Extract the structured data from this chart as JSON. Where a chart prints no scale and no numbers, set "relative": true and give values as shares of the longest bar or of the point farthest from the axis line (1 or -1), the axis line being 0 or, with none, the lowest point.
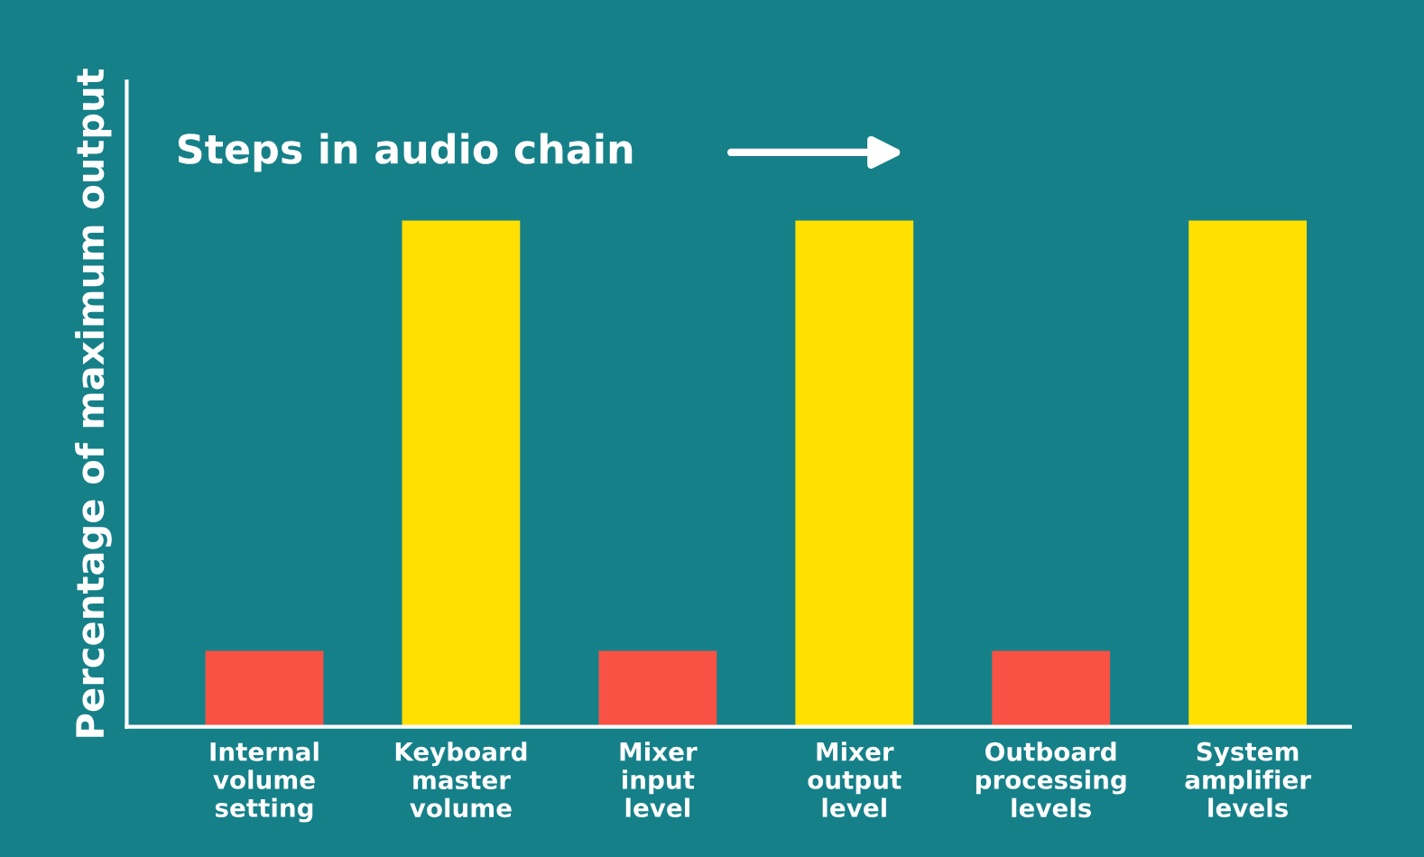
{
  "chart_data": {
    "type": "bar",
    "relative": true,
    "ylabel": "Percentage of maximum output",
    "annotations": [
      "Steps in audio chain"
    ],
    "categories": [
      "Internal volume setting",
      "Keyboard master volume",
      "Mixer input level",
      "Mixer output level",
      "Outboard processing levels",
      "System amplifier levels"
    ],
    "values": [
      0.15,
      1,
      0.15,
      1,
      0.15,
      1
    ],
    "colors": [
      "#f85244",
      "#ffe000",
      "#f85244",
      "#ffe000",
      "#f85244",
      "#ffe000"
    ],
    "grid": false,
    "legend": false
  }
}
